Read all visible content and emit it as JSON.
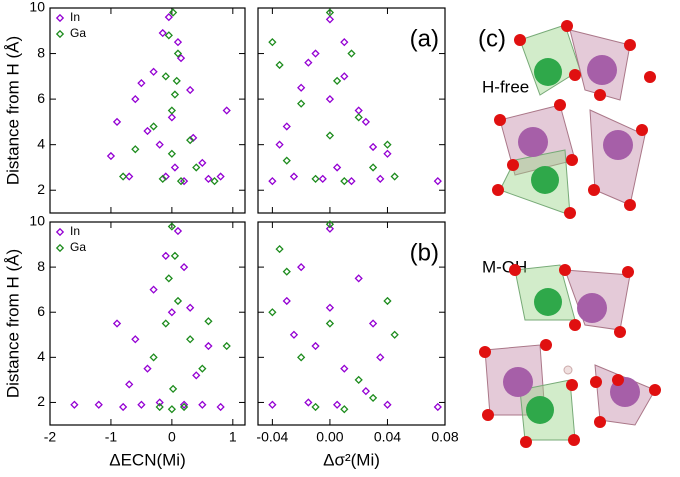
{
  "chart_data": [
    {
      "type": "scatter",
      "panel_label": "(a)",
      "y_label": "Distance from H (Å)",
      "xlim": [
        -2,
        1.2
      ],
      "xticks": [
        -2,
        -1,
        0,
        1
      ],
      "ylim": [
        1,
        10
      ],
      "yticks": [
        2,
        4,
        6,
        8,
        10
      ],
      "legend": "upper left",
      "series": [
        {
          "name": "In",
          "color": "#9400d3",
          "x": [
            -0.05,
            0.1,
            -0.3,
            -0.6,
            -0.9,
            0.3,
            0.5,
            0.9,
            -0.2,
            0.05,
            -0.1,
            0.2,
            -0.7,
            -1.0,
            0.6,
            0.15,
            -0.4,
            0.0,
            0.8,
            -0.5,
            0.35,
            -0.15
          ],
          "values": [
            9.6,
            8.5,
            7.2,
            6.0,
            5.0,
            6.4,
            3.2,
            5.5,
            4.0,
            3.0,
            2.6,
            2.4,
            2.6,
            3.5,
            2.5,
            7.8,
            4.6,
            5.2,
            2.6,
            6.7,
            4.3,
            8.9
          ]
        },
        {
          "name": "Ga",
          "color": "#1e8c1e",
          "x": [
            0.02,
            -0.05,
            0.1,
            -0.1,
            0.05,
            0.0,
            -0.3,
            0.3,
            -0.6,
            0.4,
            -0.15,
            0.15,
            0.7,
            -0.8,
            0.0,
            0.08
          ],
          "values": [
            9.8,
            8.8,
            8.0,
            7.0,
            6.2,
            5.5,
            4.8,
            4.2,
            3.8,
            3.0,
            2.5,
            2.4,
            2.4,
            2.6,
            3.6,
            6.8
          ]
        }
      ]
    },
    {
      "type": "scatter",
      "xlim": [
        -0.05,
        0.08
      ],
      "xticks": [
        -0.04,
        {
          "value": 0,
          "label": "0.00"
        },
        0.04,
        0.08
      ],
      "ylim": [
        1,
        10
      ],
      "yticks": [
        2,
        4,
        6,
        8,
        10
      ],
      "series": [
        {
          "color": "#9400d3",
          "x": [
            0.0,
            -0.01,
            0.01,
            -0.02,
            0.02,
            -0.03,
            0.03,
            0.005,
            -0.005,
            0.015,
            -0.025,
            0.04,
            0.035,
            -0.035,
            0.075,
            0.0,
            0.01,
            -0.015,
            0.025,
            -0.04
          ],
          "values": [
            9.5,
            8.0,
            7.0,
            6.5,
            5.5,
            4.8,
            3.9,
            3.0,
            2.5,
            2.4,
            2.6,
            3.6,
            2.5,
            4.0,
            2.4,
            6.0,
            8.5,
            7.6,
            5.0,
            2.4
          ]
        },
        {
          "color": "#1e8c1e",
          "x": [
            -0.04,
            -0.035,
            0.0,
            0.005,
            -0.02,
            0.02,
            0.04,
            0.03,
            -0.01,
            0.01,
            -0.03,
            0.045,
            0.0,
            0.015
          ],
          "values": [
            8.5,
            7.5,
            9.8,
            6.8,
            5.8,
            5.2,
            4.0,
            3.0,
            2.5,
            2.4,
            3.3,
            2.6,
            4.4,
            8.0
          ]
        }
      ]
    },
    {
      "type": "scatter",
      "panel_label": "(b)",
      "y_label": "Distance from H (Å)",
      "x_label": "ΔECN(Mi)",
      "xlim": [
        -2,
        1.2
      ],
      "xticks": [
        -2,
        -1,
        0,
        1
      ],
      "ylim": [
        1,
        10
      ],
      "yticks": [
        2,
        4,
        6,
        8,
        10
      ],
      "legend": "upper left",
      "series": [
        {
          "name": "In",
          "color": "#9400d3",
          "x": [
            -1.6,
            -1.2,
            -0.8,
            -0.5,
            -0.2,
            0.2,
            0.5,
            0.8,
            -0.9,
            -0.6,
            -0.3,
            0.3,
            0.6,
            -0.1,
            0.1,
            -0.4,
            0.4,
            0.0,
            -0.7,
            0.2
          ],
          "values": [
            1.9,
            1.9,
            1.8,
            1.9,
            2.0,
            1.9,
            1.9,
            1.8,
            5.5,
            4.8,
            7.0,
            6.2,
            4.5,
            8.5,
            9.6,
            3.5,
            3.2,
            6.0,
            2.8,
            8.0
          ]
        },
        {
          "name": "Ga",
          "color": "#1e8c1e",
          "x": [
            0.0,
            0.05,
            -0.05,
            0.1,
            -0.1,
            0.3,
            -0.3,
            0.5,
            0.9,
            0.0,
            -0.2,
            0.2,
            0.02,
            0.6
          ],
          "values": [
            9.8,
            8.5,
            7.5,
            6.5,
            5.5,
            4.8,
            4.0,
            3.5,
            4.5,
            1.7,
            1.8,
            1.8,
            2.6,
            5.6
          ]
        }
      ]
    },
    {
      "type": "scatter",
      "x_label": "Δσ²(Mi)",
      "xlim": [
        -0.05,
        0.08
      ],
      "xticks": [
        -0.04,
        {
          "value": 0,
          "label": "0.00"
        },
        0.04,
        0.08
      ],
      "ylim": [
        1,
        10
      ],
      "yticks": [
        2,
        4,
        6,
        8,
        10
      ],
      "series": [
        {
          "color": "#9400d3",
          "x": [
            0.0,
            -0.02,
            0.02,
            -0.03,
            0.03,
            -0.01,
            0.01,
            0.04,
            -0.04,
            0.075,
            0.005,
            -0.015,
            0.025,
            0.035,
            -0.025,
            0.0
          ],
          "values": [
            9.7,
            8.0,
            7.5,
            6.5,
            5.5,
            4.5,
            3.5,
            1.9,
            1.9,
            1.8,
            1.9,
            2.0,
            2.5,
            4.0,
            5.0,
            6.2
          ]
        },
        {
          "color": "#1e8c1e",
          "x": [
            -0.035,
            -0.03,
            0.0,
            0.04,
            0.045,
            -0.02,
            0.02,
            0.01,
            -0.01,
            0.03,
            0.0,
            -0.04
          ],
          "values": [
            8.8,
            7.8,
            9.9,
            6.5,
            5.0,
            4.0,
            3.0,
            1.7,
            1.8,
            2.2,
            5.5,
            6.0
          ]
        }
      ]
    }
  ],
  "panel_c": {
    "label": "(c)",
    "structures": [
      "H-free",
      "M-OH"
    ]
  }
}
